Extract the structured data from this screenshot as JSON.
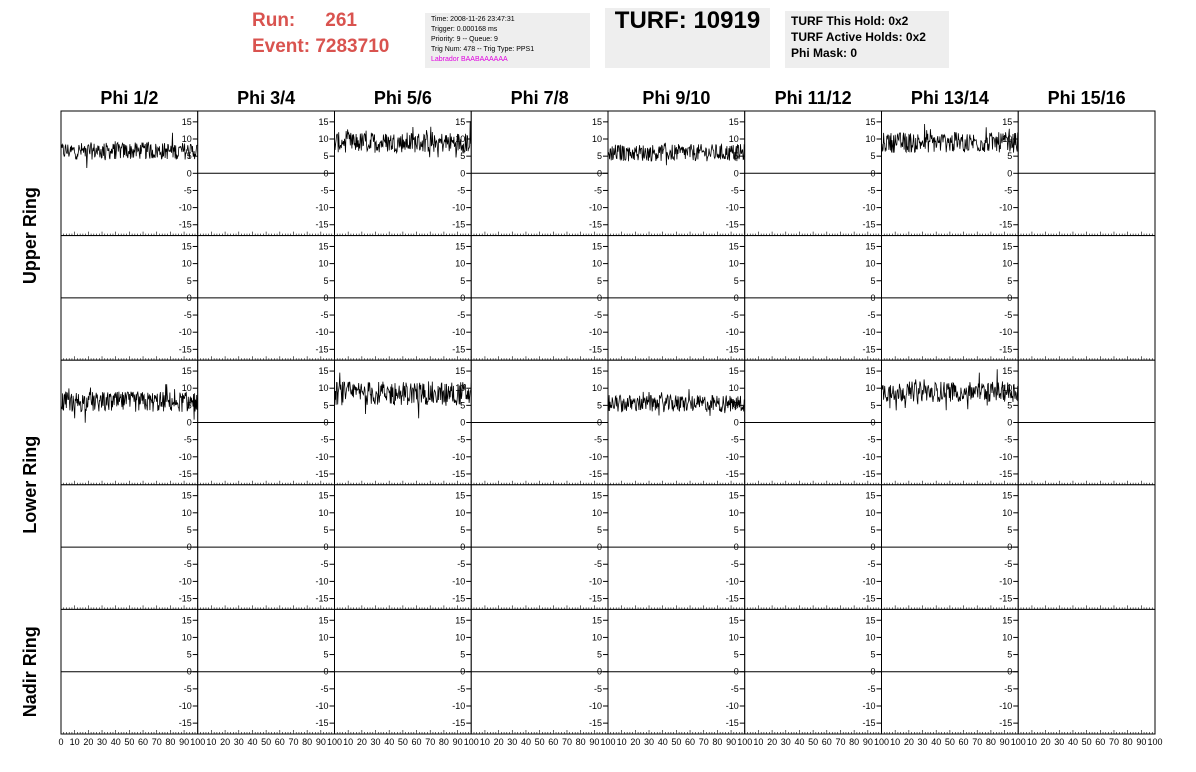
{
  "header": {
    "run_label": "Run:",
    "run_value": "261",
    "event_label": "Event:",
    "event_value": "7283710",
    "info_lines": [
      "Time: 2008-11-26 23:47:31",
      "Trigger: 0.000168 ms",
      "Priority: 9 -- Queue: 9",
      "Trig Num: 478 -- Trig Type: PPS1"
    ],
    "labrador_line": "Labrador BAABAAAAAA",
    "turf": "TURF: 10919",
    "hold_lines": [
      "TURF This Hold: 0x2",
      "TURF Active Holds: 0x2",
      "Phi Mask: 0"
    ]
  },
  "chart_data": {
    "type": "line",
    "phi_columns": [
      "Phi 1/2",
      "Phi 3/4",
      "Phi 5/6",
      "Phi 7/8",
      "Phi 9/10",
      "Phi 11/12",
      "Phi 13/14",
      "Phi 15/16"
    ],
    "ring_labels": [
      {
        "label": "Upper Ring",
        "rows": [
          0,
          1
        ]
      },
      {
        "label": "Lower Ring",
        "rows": [
          2,
          3
        ]
      },
      {
        "label": "Nadir Ring",
        "rows": [
          4
        ]
      }
    ],
    "xlim": [
      0,
      100
    ],
    "ylim": [
      -17,
      17
    ],
    "x_ticks": [
      0,
      10,
      20,
      30,
      40,
      50,
      60,
      70,
      80,
      90,
      100
    ],
    "x_tick_labels_shown": [
      "0",
      "10",
      "20",
      "30",
      "40",
      "50",
      "60",
      "70",
      "80",
      "90",
      "100"
    ],
    "y_ticks": [
      -15,
      -10,
      -5,
      0,
      5,
      10,
      15
    ],
    "y_tick_labels": [
      "-15",
      "-10",
      "-5",
      "0",
      "5",
      "10",
      "15"
    ],
    "panels": [
      {
        "row": 0,
        "col": 0,
        "mean": 6.5,
        "spread": 2.5
      },
      {
        "row": 0,
        "col": 1,
        "mean": 0,
        "spread": 0
      },
      {
        "row": 0,
        "col": 2,
        "mean": 9,
        "spread": 3
      },
      {
        "row": 0,
        "col": 3,
        "mean": 0,
        "spread": 0
      },
      {
        "row": 0,
        "col": 4,
        "mean": 6,
        "spread": 2.5
      },
      {
        "row": 0,
        "col": 5,
        "mean": 0,
        "spread": 0
      },
      {
        "row": 0,
        "col": 6,
        "mean": 9,
        "spread": 3
      },
      {
        "row": 0,
        "col": 7,
        "mean": 0,
        "spread": 0
      },
      {
        "row": 1,
        "col": 0,
        "mean": 0,
        "spread": 0
      },
      {
        "row": 1,
        "col": 1,
        "mean": 0,
        "spread": 0
      },
      {
        "row": 1,
        "col": 2,
        "mean": 0,
        "spread": 0
      },
      {
        "row": 1,
        "col": 3,
        "mean": 0,
        "spread": 0
      },
      {
        "row": 1,
        "col": 4,
        "mean": 0,
        "spread": 0
      },
      {
        "row": 1,
        "col": 5,
        "mean": 0,
        "spread": 0
      },
      {
        "row": 1,
        "col": 6,
        "mean": 0,
        "spread": 0
      },
      {
        "row": 1,
        "col": 7,
        "mean": 0,
        "spread": 0
      },
      {
        "row": 2,
        "col": 0,
        "mean": 6,
        "spread": 3
      },
      {
        "row": 2,
        "col": 1,
        "mean": 0,
        "spread": 0
      },
      {
        "row": 2,
        "col": 2,
        "mean": 8.5,
        "spread": 3.5
      },
      {
        "row": 2,
        "col": 3,
        "mean": 0,
        "spread": 0
      },
      {
        "row": 2,
        "col": 4,
        "mean": 5.5,
        "spread": 2.5
      },
      {
        "row": 2,
        "col": 5,
        "mean": 0,
        "spread": 0
      },
      {
        "row": 2,
        "col": 6,
        "mean": 9,
        "spread": 3
      },
      {
        "row": 2,
        "col": 7,
        "mean": 0,
        "spread": 0
      },
      {
        "row": 3,
        "col": 0,
        "mean": 0,
        "spread": 0
      },
      {
        "row": 3,
        "col": 1,
        "mean": 0,
        "spread": 0
      },
      {
        "row": 3,
        "col": 2,
        "mean": 0,
        "spread": 0
      },
      {
        "row": 3,
        "col": 3,
        "mean": 0,
        "spread": 0
      },
      {
        "row": 3,
        "col": 4,
        "mean": 0,
        "spread": 0
      },
      {
        "row": 3,
        "col": 5,
        "mean": 0,
        "spread": 0
      },
      {
        "row": 3,
        "col": 6,
        "mean": 0,
        "spread": 0
      },
      {
        "row": 3,
        "col": 7,
        "mean": 0,
        "spread": 0
      },
      {
        "row": 4,
        "col": 0,
        "mean": 0,
        "spread": 0
      },
      {
        "row": 4,
        "col": 1,
        "mean": 0,
        "spread": 0
      },
      {
        "row": 4,
        "col": 2,
        "mean": 0,
        "spread": 0
      },
      {
        "row": 4,
        "col": 3,
        "mean": 0,
        "spread": 0
      },
      {
        "row": 4,
        "col": 4,
        "mean": 0,
        "spread": 0
      },
      {
        "row": 4,
        "col": 5,
        "mean": 0,
        "spread": 0
      },
      {
        "row": 4,
        "col": 6,
        "mean": 0,
        "spread": 0
      },
      {
        "row": 4,
        "col": 7,
        "mean": 0,
        "spread": 0
      }
    ]
  }
}
